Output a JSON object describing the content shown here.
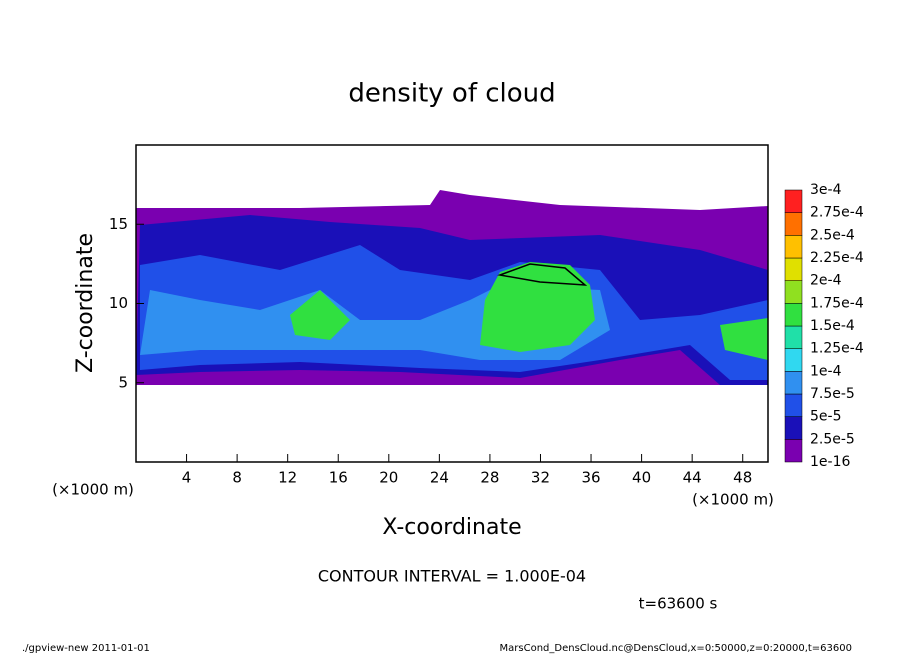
{
  "chart_data": {
    "type": "contour",
    "title": "density of cloud",
    "x_label": "X-coordinate",
    "y_label": "Z-coordinate",
    "x_unit": "(×1000 m)",
    "y_unit": "(×1000 m)",
    "xlim": [
      0,
      50
    ],
    "xticks": [
      4,
      8,
      12,
      16,
      20,
      24,
      28,
      32,
      36,
      40,
      44,
      48
    ],
    "ylim": [
      0,
      20
    ],
    "yticks": [
      5,
      10,
      15
    ],
    "colorbar": {
      "levels": [
        {
          "value": 1e-16,
          "label": "1e-16"
        },
        {
          "value": 2.5e-05,
          "label": "2.5e-5"
        },
        {
          "value": 5e-05,
          "label": "5e-5"
        },
        {
          "value": 7.5e-05,
          "label": "7.5e-5"
        },
        {
          "value": 0.0001,
          "label": "1e-4"
        },
        {
          "value": 0.000125,
          "label": "1.25e-4"
        },
        {
          "value": 0.00015,
          "label": "1.5e-4"
        },
        {
          "value": 0.000175,
          "label": "1.75e-4"
        },
        {
          "value": 0.0002,
          "label": "2e-4"
        },
        {
          "value": 0.000225,
          "label": "2.25e-4"
        },
        {
          "value": 0.00025,
          "label": "2.5e-4"
        },
        {
          "value": 0.000275,
          "label": "2.75e-4"
        },
        {
          "value": 0.0003,
          "label": "3e-4"
        }
      ],
      "colors": [
        "#7a00b0",
        "#1a10b8",
        "#2050e8",
        "#3090f0",
        "#30d8f0",
        "#20e0a8",
        "#30e040",
        "#90e020",
        "#e0e000",
        "#ffc000",
        "#ff7000",
        "#ff2020",
        "#ff8080"
      ]
    },
    "contour_note": "CONTOUR INTERVAL = 1.000E-04",
    "time_note": "t=63600 s",
    "footer_left": "./gpview-new  2011-01-01",
    "footer_right": "MarsCond_DensCloud.nc@DensCloud,x=0:50000,z=0:20000,t=63600"
  }
}
